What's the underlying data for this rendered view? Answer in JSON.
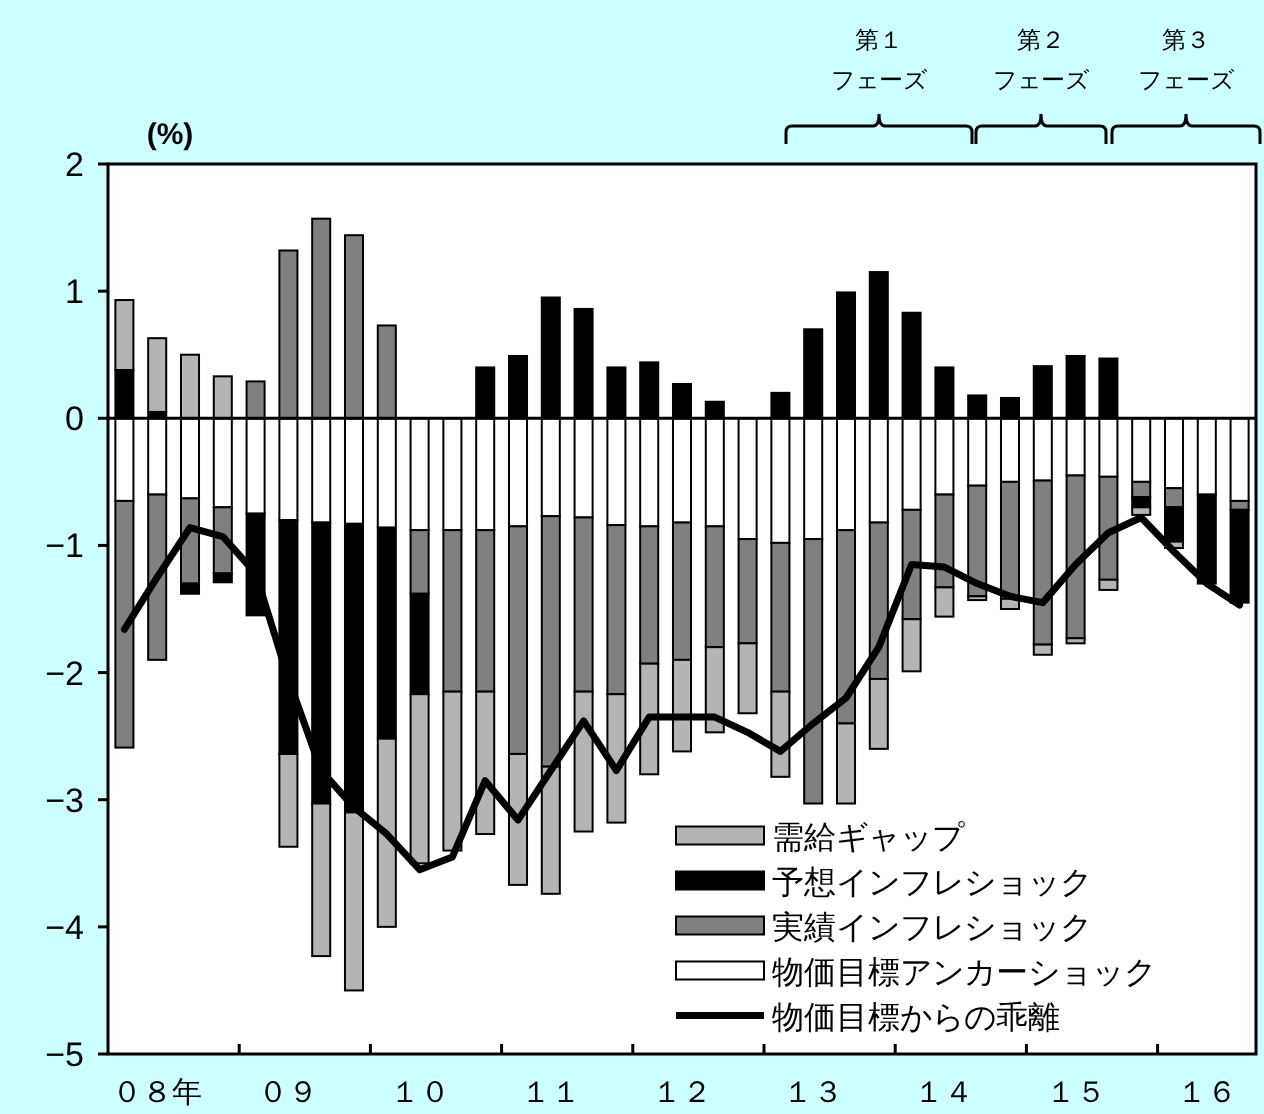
{
  "chart_data": {
    "type": "bar",
    "stacked": true,
    "ylabel": "(%)",
    "legend": "bottom",
    "categories": [
      null,
      "０８年",
      null,
      null,
      null,
      "０９",
      null,
      null,
      null,
      "１０",
      null,
      null,
      null,
      "１１",
      null,
      null,
      null,
      "１２",
      null,
      null,
      null,
      "１３",
      null,
      null,
      null,
      "１４",
      null,
      null,
      null,
      "１５",
      null,
      null,
      null,
      "１６",
      null
    ],
    "ylim": [
      -5,
      2
    ],
    "yticks": [
      -5,
      -4,
      -3,
      -2,
      -1,
      0,
      1,
      2
    ],
    "annotations": [
      "第１",
      "フェーズ",
      "第２",
      "フェーズ",
      "第３",
      "フェーズ"
    ],
    "series": [
      {
        "name": "物価目標アンカーショック",
        "color": "#ffffff",
        "values": [
          -0.65,
          -0.6,
          -0.63,
          -0.7,
          -0.75,
          -0.8,
          -0.82,
          -0.83,
          -0.86,
          -0.88,
          -0.88,
          -0.88,
          -0.85,
          -0.77,
          -0.78,
          -0.84,
          -0.85,
          -0.82,
          -0.85,
          -0.95,
          -0.98,
          -0.95,
          -0.88,
          -0.82,
          -0.72,
          -0.6,
          -0.53,
          -0.5,
          -0.49,
          -0.45,
          -0.46,
          -0.5,
          -0.55,
          -0.6,
          -0.65
        ]
      },
      {
        "name": "実績インフレショック",
        "color": "#808080",
        "values": [
          -1.94,
          -1.3,
          -0.67,
          -0.52,
          0.29,
          1.32,
          1.57,
          1.44,
          0.73,
          -0.5,
          -1.27,
          -1.27,
          -1.79,
          -1.97,
          -1.37,
          -1.33,
          -1.08,
          -1.08,
          -0.95,
          -0.82,
          -1.17,
          -2.08,
          -1.52,
          -1.23,
          -0.86,
          -0.73,
          -0.87,
          -0.92,
          -1.29,
          -1.28,
          -0.81,
          -0.12,
          -0.15,
          null,
          -0.07
        ]
      },
      {
        "name": "予想インフレショック",
        "color": "#000000",
        "values": [
          0.38,
          0.05,
          -0.08,
          -0.07,
          -0.8,
          -1.84,
          -2.21,
          -2.27,
          -1.66,
          -0.79,
          null,
          0.4,
          0.49,
          0.95,
          0.86,
          0.4,
          0.44,
          0.27,
          0.13,
          null,
          0.2,
          0.7,
          0.99,
          1.15,
          0.83,
          0.4,
          0.18,
          0.16,
          0.41,
          0.49,
          0.47,
          -0.08,
          -0.27,
          -0.7,
          -0.73
        ]
      },
      {
        "name": "需給ギャップ",
        "color": "#b4b4b4",
        "values": [
          0.55,
          0.58,
          0.5,
          0.33,
          null,
          -0.73,
          -1.2,
          -1.4,
          -1.48,
          -1.33,
          -1.25,
          -1.12,
          -1.03,
          -1.0,
          -1.1,
          -1.01,
          -0.87,
          -0.72,
          -0.67,
          -0.55,
          -0.67,
          null,
          -0.63,
          -0.55,
          -0.41,
          -0.23,
          -0.03,
          -0.08,
          -0.08,
          -0.04,
          -0.08,
          -0.06,
          -0.05,
          null,
          null
        ]
      },
      {
        "name": "物価目標からの乖離",
        "type": "line",
        "color": "#000000",
        "values": [
          -1.66,
          -1.25,
          -0.86,
          -0.93,
          -1.22,
          -2.05,
          -2.77,
          -3.06,
          -3.27,
          -3.55,
          -3.45,
          -2.85,
          -3.16,
          -2.77,
          -2.38,
          -2.77,
          -2.35,
          -2.35,
          -2.35,
          -2.47,
          -2.62,
          -2.4,
          -2.2,
          -1.8,
          -1.15,
          -1.17,
          -1.3,
          -1.4,
          -1.45,
          -1.15,
          -0.9,
          -0.78,
          -1.05,
          -1.3,
          -1.47
        ]
      }
    ]
  }
}
